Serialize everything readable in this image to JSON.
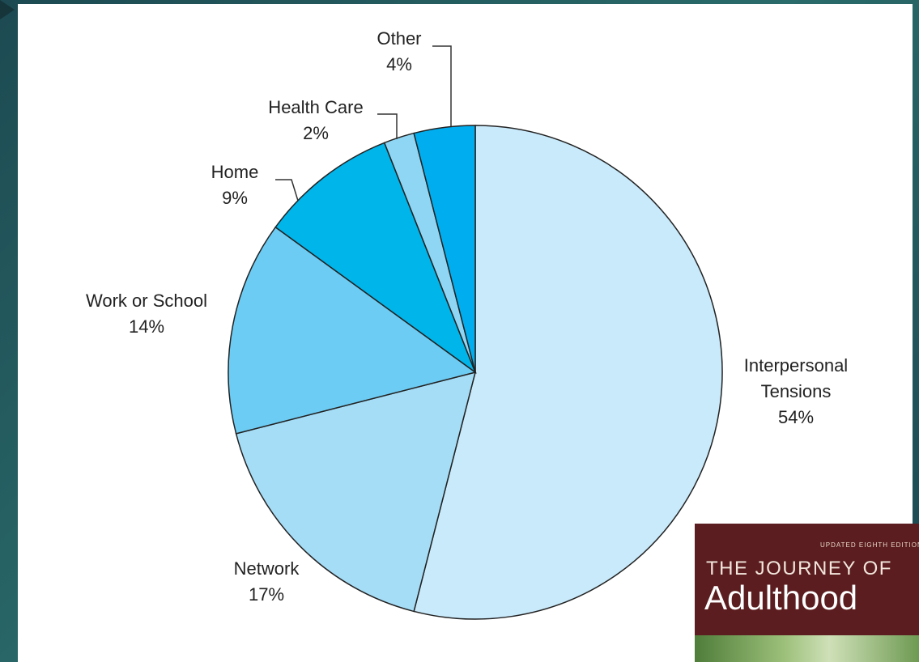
{
  "chart_data": {
    "type": "pie",
    "categories": [
      "Interpersonal Tensions",
      "Network",
      "Work or School",
      "Home",
      "Health Care",
      "Other"
    ],
    "values": [
      54,
      17,
      14,
      9,
      2,
      4
    ],
    "value_labels": [
      "54%",
      "17%",
      "14%",
      "9%",
      "2%",
      "4%"
    ],
    "colors": [
      "#c9eafb",
      "#a5ddf7",
      "#6dccf3",
      "#00b5ea",
      "#8fd6f5",
      "#00aeef"
    ]
  },
  "book_cover": {
    "edition": "UPDATED EIGHTH EDITION",
    "series": "THE JOURNEY OF",
    "title": "Adulthood"
  }
}
